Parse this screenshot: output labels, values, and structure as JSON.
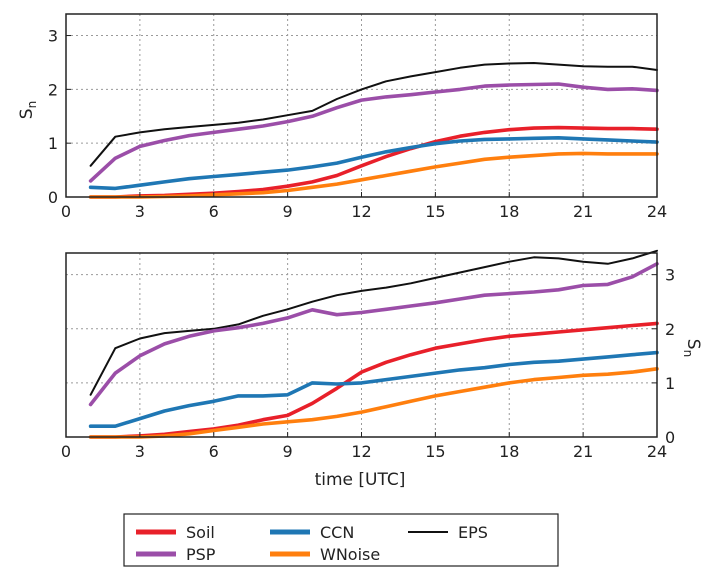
{
  "chart_data": [
    {
      "type": "line",
      "xlabel": "",
      "ylabel": "S_n",
      "xlim": [
        0,
        24
      ],
      "ylim": [
        0,
        3.4
      ],
      "xticks": [
        "0",
        "3",
        "6",
        "9",
        "12",
        "15",
        "18",
        "21",
        "24"
      ],
      "yticks": [
        "0",
        "1",
        "2",
        "3"
      ],
      "yaxis_side": "left",
      "grid": true,
      "series": [
        {
          "name": "Soil",
          "color": "#e8202a",
          "x": [
            1,
            2,
            3,
            4,
            5,
            6,
            7,
            8,
            9,
            10,
            11,
            12,
            13,
            14,
            15,
            16,
            17,
            18,
            19,
            20,
            21,
            22,
            23,
            24
          ],
          "y": [
            0.0,
            0.0,
            0.02,
            0.03,
            0.05,
            0.07,
            0.1,
            0.14,
            0.2,
            0.28,
            0.4,
            0.58,
            0.75,
            0.9,
            1.03,
            1.13,
            1.2,
            1.25,
            1.28,
            1.29,
            1.28,
            1.27,
            1.27,
            1.26
          ]
        },
        {
          "name": "CCN",
          "color": "#1f77b4",
          "x": [
            1,
            2,
            3,
            4,
            5,
            6,
            7,
            8,
            9,
            10,
            11,
            12,
            13,
            14,
            15,
            16,
            17,
            18,
            19,
            20,
            21,
            22,
            23,
            24
          ],
          "y": [
            0.18,
            0.16,
            0.22,
            0.28,
            0.34,
            0.38,
            0.42,
            0.46,
            0.5,
            0.56,
            0.63,
            0.74,
            0.84,
            0.92,
            0.99,
            1.04,
            1.07,
            1.08,
            1.09,
            1.1,
            1.08,
            1.06,
            1.04,
            1.02
          ]
        },
        {
          "name": "EPS",
          "color": "#111111",
          "x": [
            1,
            2,
            3,
            4,
            5,
            6,
            7,
            8,
            9,
            10,
            11,
            12,
            13,
            14,
            15,
            16,
            17,
            18,
            19,
            20,
            21,
            22,
            23,
            24
          ],
          "y": [
            0.58,
            1.12,
            1.2,
            1.26,
            1.3,
            1.34,
            1.38,
            1.44,
            1.52,
            1.6,
            1.82,
            2.0,
            2.15,
            2.24,
            2.32,
            2.4,
            2.46,
            2.48,
            2.49,
            2.46,
            2.43,
            2.42,
            2.42,
            2.36
          ]
        },
        {
          "name": "PSP",
          "color": "#9b4ea8",
          "x": [
            1,
            2,
            3,
            4,
            5,
            6,
            7,
            8,
            9,
            10,
            11,
            12,
            13,
            14,
            15,
            16,
            17,
            18,
            19,
            20,
            21,
            22,
            23,
            24
          ],
          "y": [
            0.3,
            0.72,
            0.94,
            1.05,
            1.14,
            1.2,
            1.26,
            1.32,
            1.4,
            1.5,
            1.66,
            1.8,
            1.86,
            1.9,
            1.95,
            2.0,
            2.06,
            2.08,
            2.09,
            2.1,
            2.04,
            2.0,
            2.01,
            1.98
          ]
        },
        {
          "name": "WNoise",
          "color": "#ff7f0e",
          "x": [
            1,
            2,
            3,
            4,
            5,
            6,
            7,
            8,
            9,
            10,
            11,
            12,
            13,
            14,
            15,
            16,
            17,
            18,
            19,
            20,
            21,
            22,
            23,
            24
          ],
          "y": [
            0.0,
            0.0,
            0.0,
            0.01,
            0.02,
            0.04,
            0.06,
            0.08,
            0.12,
            0.18,
            0.24,
            0.32,
            0.4,
            0.48,
            0.56,
            0.63,
            0.7,
            0.74,
            0.77,
            0.8,
            0.81,
            0.8,
            0.8,
            0.8
          ]
        }
      ]
    },
    {
      "type": "line",
      "xlabel": "time [UTC]",
      "ylabel": "S_n",
      "xlim": [
        0,
        24
      ],
      "ylim": [
        0,
        3.4
      ],
      "xticks": [
        "0",
        "3",
        "6",
        "9",
        "12",
        "15",
        "18",
        "21",
        "24"
      ],
      "yticks": [
        "0",
        "1",
        "2",
        "3"
      ],
      "yaxis_side": "right",
      "grid": true,
      "series": [
        {
          "name": "Soil",
          "color": "#e8202a",
          "x": [
            1,
            2,
            3,
            4,
            5,
            6,
            7,
            8,
            9,
            10,
            11,
            12,
            13,
            14,
            15,
            16,
            17,
            18,
            19,
            20,
            21,
            22,
            23,
            24
          ],
          "y": [
            0.0,
            0.0,
            0.02,
            0.05,
            0.1,
            0.15,
            0.22,
            0.32,
            0.4,
            0.62,
            0.9,
            1.2,
            1.38,
            1.52,
            1.64,
            1.72,
            1.8,
            1.86,
            1.9,
            1.94,
            1.98,
            2.02,
            2.06,
            2.1
          ]
        },
        {
          "name": "CCN",
          "color": "#1f77b4",
          "x": [
            1,
            2,
            3,
            4,
            5,
            6,
            7,
            8,
            9,
            10,
            11,
            12,
            13,
            14,
            15,
            16,
            17,
            18,
            19,
            20,
            21,
            22,
            23,
            24
          ],
          "y": [
            0.2,
            0.2,
            0.34,
            0.48,
            0.58,
            0.66,
            0.76,
            0.76,
            0.78,
            1.0,
            0.98,
            1.0,
            1.06,
            1.12,
            1.18,
            1.24,
            1.28,
            1.34,
            1.38,
            1.4,
            1.44,
            1.48,
            1.52,
            1.56
          ]
        },
        {
          "name": "EPS",
          "color": "#111111",
          "x": [
            1,
            2,
            3,
            4,
            5,
            6,
            7,
            8,
            9,
            10,
            11,
            12,
            13,
            14,
            15,
            16,
            17,
            18,
            19,
            20,
            21,
            22,
            23,
            24
          ],
          "y": [
            0.78,
            1.64,
            1.82,
            1.92,
            1.96,
            2.0,
            2.08,
            2.24,
            2.36,
            2.5,
            2.62,
            2.7,
            2.76,
            2.84,
            2.94,
            3.04,
            3.14,
            3.24,
            3.32,
            3.3,
            3.24,
            3.2,
            3.3,
            3.44
          ]
        },
        {
          "name": "PSP",
          "color": "#9b4ea8",
          "x": [
            1,
            2,
            3,
            4,
            5,
            6,
            7,
            8,
            9,
            10,
            11,
            12,
            13,
            14,
            15,
            16,
            17,
            18,
            19,
            20,
            21,
            22,
            23,
            24
          ],
          "y": [
            0.6,
            1.18,
            1.5,
            1.72,
            1.86,
            1.96,
            2.02,
            2.1,
            2.2,
            2.35,
            2.26,
            2.3,
            2.36,
            2.42,
            2.48,
            2.55,
            2.62,
            2.65,
            2.68,
            2.72,
            2.8,
            2.82,
            2.96,
            3.2
          ]
        },
        {
          "name": "WNoise",
          "color": "#ff7f0e",
          "x": [
            1,
            2,
            3,
            4,
            5,
            6,
            7,
            8,
            9,
            10,
            11,
            12,
            13,
            14,
            15,
            16,
            17,
            18,
            19,
            20,
            21,
            22,
            23,
            24
          ],
          "y": [
            0.0,
            0.0,
            0.0,
            0.02,
            0.06,
            0.12,
            0.18,
            0.24,
            0.28,
            0.32,
            0.38,
            0.46,
            0.56,
            0.66,
            0.76,
            0.84,
            0.92,
            1.0,
            1.06,
            1.1,
            1.14,
            1.16,
            1.2,
            1.26
          ]
        }
      ]
    }
  ],
  "legend": {
    "entries": [
      {
        "name": "Soil",
        "color": "#e8202a"
      },
      {
        "name": "CCN",
        "color": "#1f77b4"
      },
      {
        "name": "EPS",
        "color": "#111111"
      },
      {
        "name": "PSP",
        "color": "#9b4ea8"
      },
      {
        "name": "WNoise",
        "color": "#ff7f0e"
      }
    ]
  }
}
